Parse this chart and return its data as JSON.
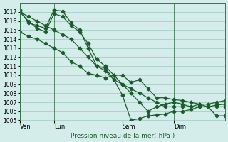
{
  "background_color": "#d4ecea",
  "grid_color": "#a0c8c0",
  "line_color": "#1a5c2a",
  "title": "Pression niveau de la mer( hPa )",
  "ylim": [
    1005,
    1018
  ],
  "yticks": [
    1005,
    1006,
    1007,
    1008,
    1009,
    1010,
    1011,
    1012,
    1013,
    1014,
    1015,
    1016,
    1017
  ],
  "xtick_labels": [
    "Ven",
    "Lun",
    "Sam",
    "Dim"
  ],
  "xtick_positions": [
    0,
    4,
    12,
    18
  ],
  "xlim": [
    0,
    24
  ],
  "series1_x": [
    0,
    1,
    2,
    3,
    4,
    5,
    6,
    7,
    8,
    9,
    10,
    11,
    12,
    13,
    14,
    15,
    16,
    17,
    18,
    19,
    20,
    21,
    22,
    23,
    24
  ],
  "series1_y": [
    1017.0,
    1016.5,
    1016.0,
    1015.5,
    1015.0,
    1014.5,
    1014.0,
    1013.0,
    1012.0,
    1011.0,
    1010.5,
    1009.5,
    1009.0,
    1008.5,
    1008.0,
    1007.5,
    1007.0,
    1006.5,
    1006.5,
    1006.5,
    1006.5,
    1006.5,
    1006.5,
    1006.5,
    1006.5
  ],
  "series2_x": [
    0,
    1,
    2,
    3,
    4,
    5,
    6,
    7,
    8,
    9,
    10,
    11,
    12,
    13,
    14,
    15,
    16,
    17,
    18,
    19,
    20,
    21,
    22,
    23,
    24
  ],
  "series2_y": [
    1017.2,
    1015.8,
    1015.5,
    1015.2,
    1017.2,
    1017.1,
    1015.8,
    1015.0,
    1013.0,
    1011.0,
    1010.8,
    1009.5,
    1007.8,
    1005.0,
    1005.2,
    1005.5,
    1005.6,
    1005.7,
    1006.0,
    1006.0,
    1006.2,
    1006.5,
    1006.5,
    1006.7,
    1006.8
  ],
  "series3_x": [
    0,
    1,
    2,
    3,
    4,
    5,
    6,
    7,
    8,
    9,
    10,
    11,
    12,
    13,
    14,
    15,
    16,
    17,
    18,
    19,
    20,
    21,
    22,
    23,
    24
  ],
  "series3_y": [
    1014.8,
    1014.3,
    1014.0,
    1013.5,
    1013.0,
    1012.5,
    1011.5,
    1011.0,
    1010.2,
    1010.0,
    1009.7,
    1010.0,
    1010.0,
    1009.2,
    1009.5,
    1008.5,
    1007.5,
    1007.5,
    1007.3,
    1007.2,
    1007.0,
    1006.8,
    1006.8,
    1007.0,
    1007.2
  ],
  "series4_x": [
    0,
    1,
    2,
    3,
    4,
    5,
    6,
    7,
    8,
    9,
    10,
    11,
    12,
    13,
    14,
    15,
    16,
    17,
    18,
    19,
    20,
    21,
    22,
    23,
    24
  ],
  "series4_y": [
    1017.0,
    1016.0,
    1015.2,
    1014.8,
    1016.8,
    1016.5,
    1015.5,
    1014.8,
    1013.5,
    1011.8,
    1011.0,
    1010.0,
    1009.0,
    1008.0,
    1007.0,
    1006.0,
    1006.5,
    1006.8,
    1007.0,
    1006.8,
    1006.5,
    1006.8,
    1006.5,
    1005.5,
    1005.5
  ],
  "vline_positions": [
    0,
    4,
    12,
    18
  ]
}
